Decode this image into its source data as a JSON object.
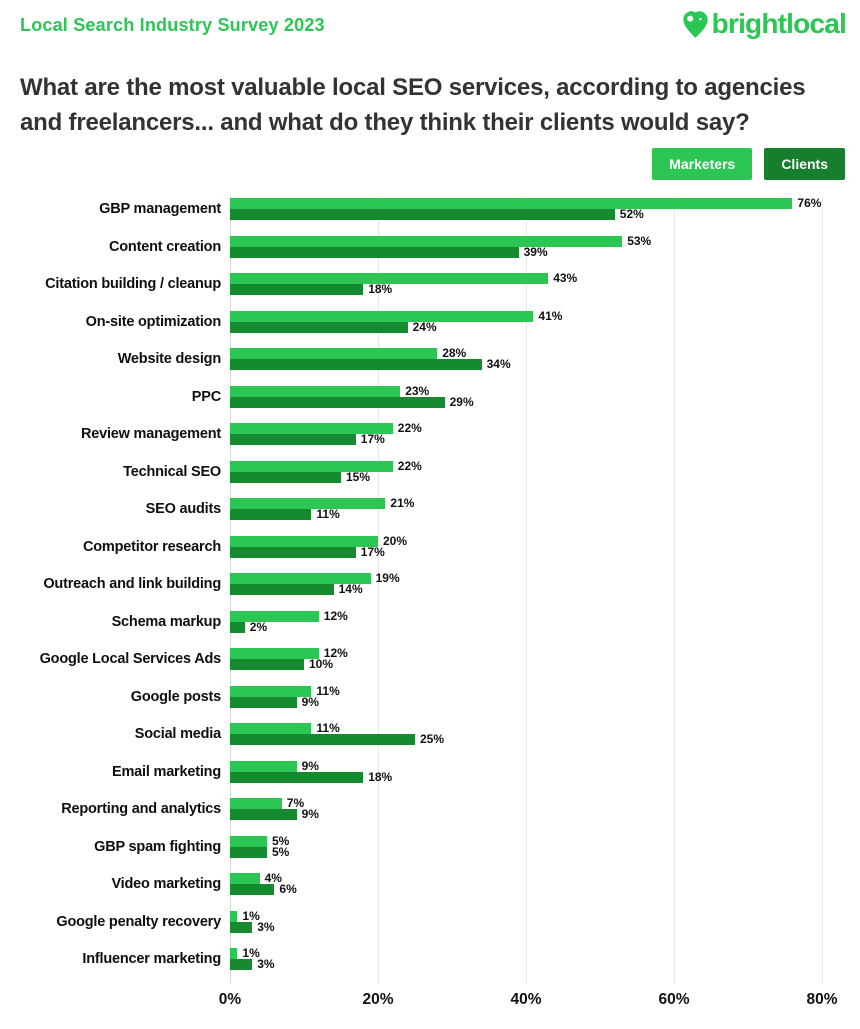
{
  "header": {
    "survey_label": "Local Search Industry Survey 2023",
    "brand": "brightlocal"
  },
  "title": {
    "text": "What are the most valuable local SEO services, according to agencies and freelancers... and what do they think their clients would say?"
  },
  "legend": [
    {
      "label": "Marketers",
      "color": "#2BC653"
    },
    {
      "label": "Clients",
      "color": "#177E2D"
    }
  ],
  "colors": {
    "accent_green": "#2BC653",
    "dark_green": "#168A2E",
    "title_text": "#333333",
    "gridline": "#e6e6e6"
  },
  "chart_data": {
    "type": "bar",
    "orientation": "horizontal",
    "title": "What are the most valuable local SEO services, according to agencies and freelancers... and what do they think their clients would say?",
    "categories": [
      "GBP management",
      "Content creation",
      "Citation building / cleanup",
      "On-site optimization",
      "Website design",
      "PPC",
      "Review management",
      "Technical SEO",
      "SEO audits",
      "Competitor research",
      "Outreach and link building",
      "Schema markup",
      "Google Local Services Ads",
      "Google posts",
      "Social media",
      "Email marketing",
      "Reporting and analytics",
      "GBP spam fighting",
      "Video marketing",
      "Google penalty recovery",
      "Influencer marketing"
    ],
    "series": [
      {
        "name": "Marketers",
        "color": "#2BC653",
        "values": [
          76,
          53,
          43,
          41,
          28,
          23,
          22,
          22,
          21,
          20,
          19,
          12,
          12,
          11,
          11,
          9,
          7,
          5,
          4,
          1,
          1
        ]
      },
      {
        "name": "Clients",
        "color": "#168A2E",
        "values": [
          52,
          39,
          18,
          24,
          34,
          29,
          17,
          15,
          11,
          17,
          14,
          2,
          10,
          9,
          25,
          18,
          9,
          5,
          6,
          3,
          3
        ]
      }
    ],
    "value_suffix": "%",
    "x_ticks": [
      "0%",
      "20%",
      "40%",
      "60%",
      "80%"
    ],
    "xlim": [
      0,
      80
    ],
    "grid": "vertical",
    "legend_position": "top-right"
  }
}
